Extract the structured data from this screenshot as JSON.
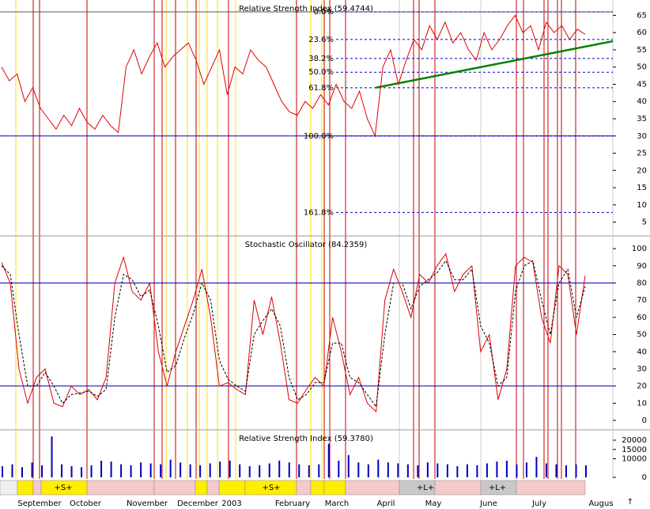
{
  "chart_data": [
    {
      "type": "line",
      "title": "Relative Strength Index (59.4744)",
      "series": [
        {
          "name": "RSI",
          "color": "#e00000",
          "values": [
            50,
            46,
            48,
            40,
            44,
            38,
            35,
            32,
            36,
            33,
            38,
            34,
            32,
            36,
            33,
            31,
            50,
            55,
            48,
            53,
            57,
            50,
            53,
            55,
            57,
            52,
            45,
            50,
            55,
            42,
            50,
            48,
            55,
            52,
            50,
            45,
            40,
            37,
            36,
            40,
            38,
            42,
            39,
            45,
            40,
            38,
            43,
            35,
            30,
            50,
            55,
            45,
            52,
            58,
            55,
            62,
            58,
            63,
            57,
            60,
            55,
            52,
            60,
            55,
            58,
            62,
            65,
            60,
            62,
            55,
            63,
            60,
            62,
            58,
            61,
            59.4744
          ]
        }
      ],
      "ylim": [
        1,
        69
      ],
      "yticks": [
        5,
        10,
        15,
        20,
        25,
        30,
        35,
        40,
        45,
        50,
        55,
        60,
        65
      ],
      "hlines": [
        {
          "value": 30,
          "color": "#0000c0"
        },
        {
          "value": 66,
          "color": "#555555"
        }
      ],
      "fib_levels": [
        {
          "value": 66,
          "label": "0.0%"
        },
        {
          "value": 58,
          "label": "23.6%"
        },
        {
          "value": 52.5,
          "label": "38.2%"
        },
        {
          "value": 48.5,
          "label": "50.0%"
        },
        {
          "value": 44,
          "label": "61.8%"
        },
        {
          "value": 30,
          "label": "100.0%"
        },
        {
          "value": 7.8,
          "label": "161.8%"
        }
      ],
      "trendline": {
        "color": "#008000",
        "values": [
          44,
          57.5
        ]
      }
    },
    {
      "type": "line",
      "title": "Stochastic Oscillator (84.2359)",
      "series": [
        {
          "name": "%K",
          "color": "#e00000",
          "values": [
            92,
            80,
            30,
            10,
            25,
            30,
            10,
            8,
            20,
            15,
            18,
            12,
            25,
            80,
            95,
            75,
            70,
            80,
            40,
            20,
            40,
            55,
            70,
            88,
            60,
            20,
            22,
            18,
            15,
            70,
            50,
            72,
            45,
            12,
            10,
            18,
            25,
            20,
            60,
            40,
            15,
            25,
            10,
            5,
            70,
            88,
            75,
            60,
            85,
            80,
            90,
            97,
            75,
            85,
            90,
            40,
            50,
            12,
            30,
            90,
            95,
            92,
            60,
            45,
            90,
            85,
            50,
            84.2359
          ]
        },
        {
          "name": "%D",
          "color": "#000000",
          "values": [
            90,
            85,
            50,
            20,
            20,
            28,
            20,
            10,
            15,
            16,
            17,
            14,
            18,
            60,
            85,
            82,
            72,
            76,
            55,
            28,
            32,
            48,
            62,
            80,
            70,
            35,
            24,
            20,
            17,
            50,
            58,
            65,
            55,
            25,
            12,
            15,
            22,
            22,
            45,
            45,
            25,
            22,
            15,
            8,
            50,
            80,
            80,
            65,
            78,
            82,
            86,
            93,
            82,
            82,
            88,
            55,
            45,
            20,
            25,
            75,
            90,
            93,
            70,
            50,
            80,
            88,
            60,
            78
          ],
          "dashed": true
        }
      ],
      "ylim": [
        -5.5,
        106.5
      ],
      "yticks": [
        0,
        10,
        20,
        30,
        40,
        50,
        60,
        70,
        80,
        90,
        100
      ],
      "hlines": [
        {
          "value": 80,
          "color": "#0000c0"
        },
        {
          "value": 20,
          "color": "#0000c0"
        }
      ]
    },
    {
      "type": "bar",
      "title": "Relative Strength Index (59.3780)",
      "series": [
        {
          "name": "Volume",
          "color": "#0000c0",
          "values": [
            6000,
            7000,
            5500,
            8000,
            6500,
            22000,
            7000,
            6000,
            5500,
            6500,
            9000,
            8500,
            7000,
            6500,
            8000,
            7500,
            7000,
            9500,
            8000,
            7000,
            6500,
            7500,
            8500,
            9000,
            7000,
            6000,
            6500,
            7500,
            9000,
            8000,
            7000,
            6500,
            7000,
            18000,
            9000,
            12000,
            8000,
            7000,
            9500,
            8000,
            7500,
            7000,
            6500,
            8000,
            7500,
            7000,
            6000,
            7000,
            6500,
            7500,
            8500,
            9000,
            7000,
            8000,
            11000,
            7500,
            7000,
            6500,
            7000,
            6500
          ]
        }
      ],
      "ylim": [
        -850,
        24700
      ],
      "yticks": [
        0,
        10000,
        15000,
        20000
      ]
    }
  ],
  "signals": [
    "+S+",
    "+S+",
    "+L+",
    "+L+"
  ],
  "months": [
    "September",
    "October",
    "November",
    "December",
    "2003",
    "February",
    "March",
    "April",
    "May",
    "June",
    "July",
    "Augus"
  ],
  "nav_arrow": "↑"
}
